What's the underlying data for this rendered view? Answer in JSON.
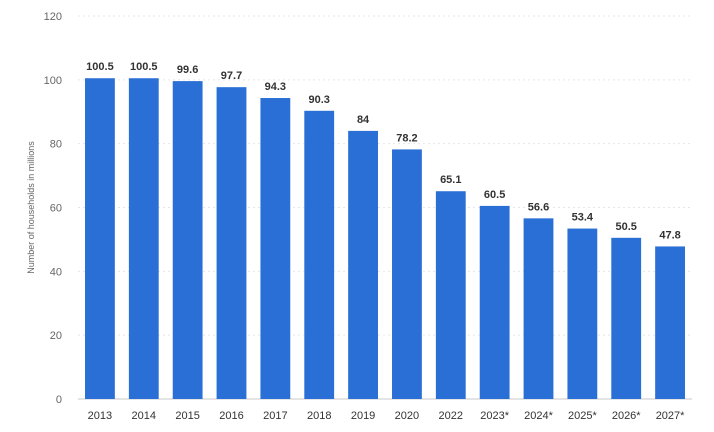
{
  "chart_data": {
    "type": "bar",
    "title": "",
    "xlabel": "",
    "ylabel": "Number of households in millions",
    "ylim": [
      0,
      120
    ],
    "yticks": [
      0,
      20,
      40,
      60,
      80,
      100,
      120
    ],
    "grid": true,
    "legend": "none",
    "bar_color": "#2a6fd6",
    "categories": [
      "2013",
      "2014",
      "2015",
      "2016",
      "2017",
      "2018",
      "2019",
      "2020",
      "2022",
      "2023*",
      "2024*",
      "2025*",
      "2026*",
      "2027*"
    ],
    "values": [
      100.5,
      100.5,
      99.6,
      97.7,
      94.3,
      90.3,
      84,
      78.2,
      65.1,
      60.5,
      56.6,
      53.4,
      50.5,
      47.8
    ]
  }
}
